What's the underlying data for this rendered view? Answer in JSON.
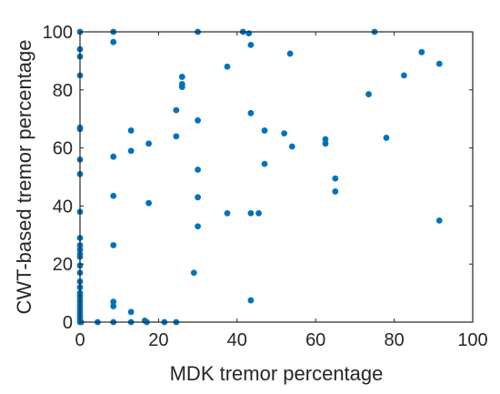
{
  "chart_data": {
    "type": "scatter",
    "xlabel": "MDK tremor percentage",
    "ylabel": "CWT-based tremor percentage",
    "xlim": [
      0,
      100
    ],
    "ylim": [
      0,
      100
    ],
    "x_ticks": [
      "0",
      "20",
      "40",
      "60",
      "80",
      "100"
    ],
    "y_ticks": [
      "0",
      "20",
      "40",
      "60",
      "80",
      "100"
    ],
    "grid": false,
    "box": true,
    "marker_color": "#0072BD",
    "axis_color": "#262626",
    "series": [
      {
        "points": [
          [
            0,
            100
          ],
          [
            0,
            94
          ],
          [
            0,
            91.5
          ],
          [
            0,
            85
          ],
          [
            0,
            67
          ],
          [
            0,
            66.5
          ],
          [
            0,
            56
          ],
          [
            0,
            51
          ],
          [
            0,
            38
          ],
          [
            0,
            29
          ],
          [
            0,
            26.5
          ],
          [
            0,
            25
          ],
          [
            0,
            23.5
          ],
          [
            0,
            22.5
          ],
          [
            0,
            19.5
          ],
          [
            0,
            17
          ],
          [
            0,
            14
          ],
          [
            0,
            12
          ],
          [
            0,
            10
          ],
          [
            0,
            9
          ],
          [
            0,
            8
          ],
          [
            0,
            7
          ],
          [
            0,
            6
          ],
          [
            0,
            5
          ],
          [
            0,
            4
          ],
          [
            0,
            3
          ],
          [
            0,
            2
          ],
          [
            0,
            1
          ],
          [
            0,
            0
          ],
          [
            0.3,
            0
          ],
          [
            4.5,
            0
          ],
          [
            8.5,
            100
          ],
          [
            8.5,
            96.5
          ],
          [
            8.5,
            57
          ],
          [
            8.5,
            43.5
          ],
          [
            8.5,
            26.5
          ],
          [
            8.5,
            7
          ],
          [
            8.5,
            5.5
          ],
          [
            8.5,
            0
          ],
          [
            13,
            66
          ],
          [
            13,
            59
          ],
          [
            13,
            3.5
          ],
          [
            13,
            0
          ],
          [
            16.5,
            0.5
          ],
          [
            17,
            0
          ],
          [
            17.5,
            41
          ],
          [
            17.5,
            61.5
          ],
          [
            21.5,
            0
          ],
          [
            24.5,
            73
          ],
          [
            24.5,
            64
          ],
          [
            24.5,
            0
          ],
          [
            26,
            84.5
          ],
          [
            26,
            82
          ],
          [
            26,
            81
          ],
          [
            29,
            17
          ],
          [
            30,
            100
          ],
          [
            30,
            69.5
          ],
          [
            30,
            52.5
          ],
          [
            30,
            43
          ],
          [
            30,
            33
          ],
          [
            37.5,
            88
          ],
          [
            37.5,
            37.5
          ],
          [
            41.5,
            100
          ],
          [
            43,
            99.5
          ],
          [
            43.5,
            95.5
          ],
          [
            43.5,
            72
          ],
          [
            43.5,
            37.5
          ],
          [
            43.5,
            7.5
          ],
          [
            45.5,
            37.5
          ],
          [
            47,
            66
          ],
          [
            47,
            54.5
          ],
          [
            52,
            65
          ],
          [
            53.5,
            92.5
          ],
          [
            54,
            60.5
          ],
          [
            62.5,
            63
          ],
          [
            62.5,
            61.5
          ],
          [
            65,
            49.5
          ],
          [
            65,
            45
          ],
          [
            73.5,
            78.5
          ],
          [
            75,
            100
          ],
          [
            78,
            63.5
          ],
          [
            82.5,
            85
          ],
          [
            87,
            93
          ],
          [
            91.5,
            89
          ],
          [
            91.5,
            35
          ]
        ]
      }
    ]
  }
}
